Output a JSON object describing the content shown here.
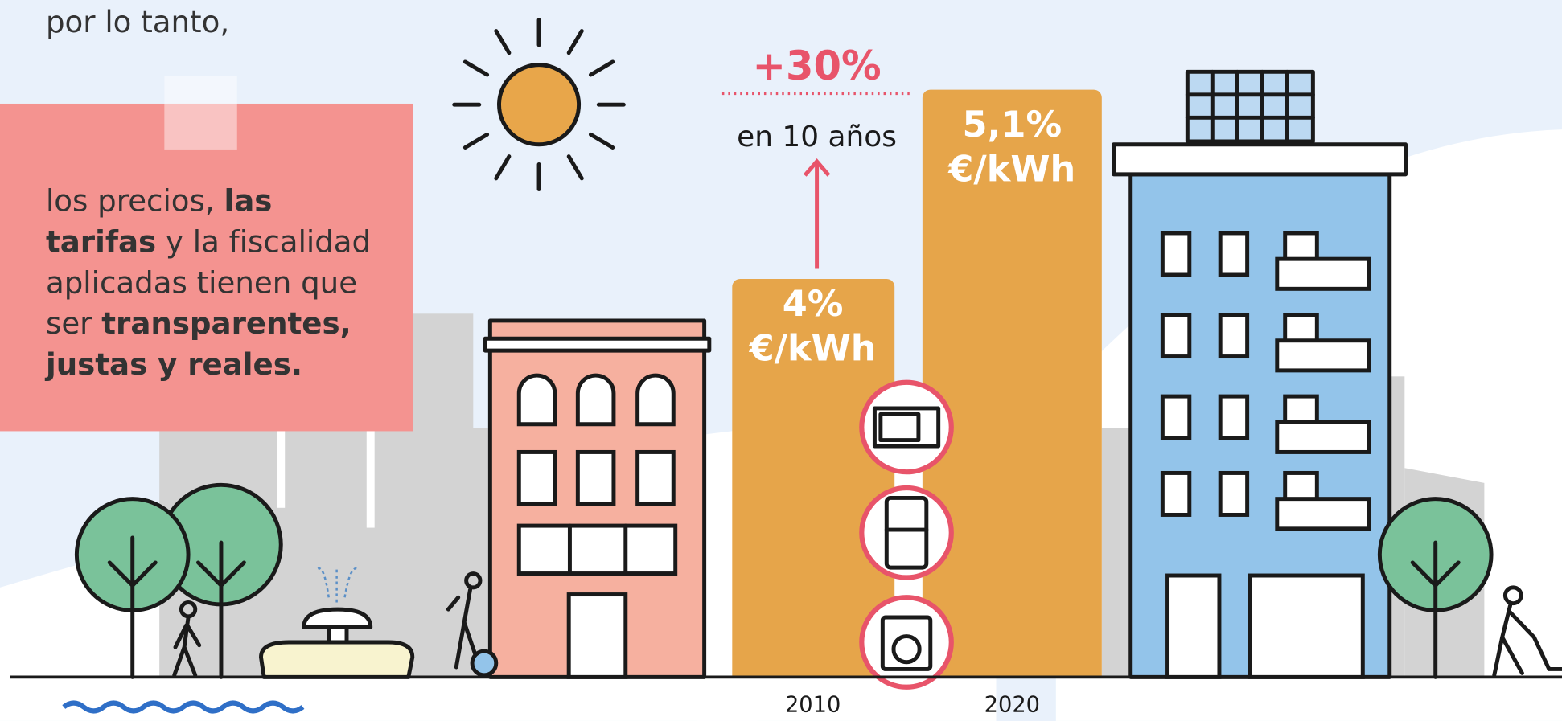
{
  "intro": "por lo tanto,",
  "note": {
    "lines": [
      [
        {
          "text": "los precios, ",
          "bold": false
        },
        {
          "text": "las",
          "bold": true
        }
      ],
      [
        {
          "text": "tarifas",
          "bold": true
        },
        {
          "text": " y la fiscalidad",
          "bold": false
        }
      ],
      [
        {
          "text": "aplicadas tienen que",
          "bold": false
        }
      ],
      [
        {
          "text": "ser ",
          "bold": false
        },
        {
          "text": "transparentes,",
          "bold": true
        }
      ],
      [
        {
          "text": "justas y reales.",
          "bold": true
        }
      ]
    ]
  },
  "change": {
    "value_label": "+30%",
    "period": "en 10 años"
  },
  "bars": [
    {
      "value_label": "4%",
      "unit": "€/kWh",
      "year": "2010"
    },
    {
      "value_label": "5,1%",
      "unit": "€/kWh",
      "year": "2020"
    }
  ]
}
